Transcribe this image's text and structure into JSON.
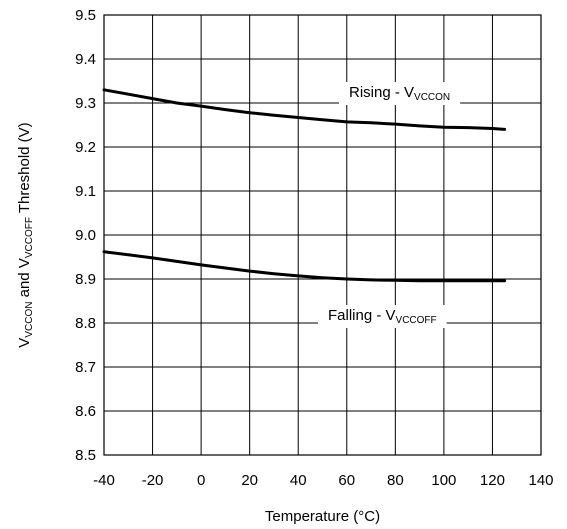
{
  "chart_data": {
    "type": "line",
    "xlabel": "Temperature (°C)",
    "ylabel": {
      "v1": "V",
      "sub1": "VCCON",
      "mid": " and V",
      "sub2": "VCCOFF",
      "end": " Threshold (V)"
    },
    "xlim": [
      -40,
      140
    ],
    "ylim": [
      8.5,
      9.5
    ],
    "x_ticks": [
      "-40",
      "-20",
      "0",
      "20",
      "40",
      "60",
      "80",
      "100",
      "120",
      "140"
    ],
    "y_ticks": [
      "8.5",
      "8.6",
      "8.7",
      "8.8",
      "8.9",
      "9.0",
      "9.1",
      "9.2",
      "9.3",
      "9.4",
      "9.5"
    ],
    "grid": true,
    "series": [
      {
        "name": "Rising - VVCCON",
        "x": [
          -40,
          -30,
          -20,
          -10,
          0,
          10,
          20,
          30,
          40,
          50,
          60,
          70,
          80,
          90,
          100,
          110,
          120,
          125
        ],
        "y": [
          9.33,
          9.32,
          9.31,
          9.3,
          9.293,
          9.285,
          9.278,
          9.272,
          9.267,
          9.262,
          9.257,
          9.255,
          9.252,
          9.248,
          9.245,
          9.244,
          9.242,
          9.24
        ]
      },
      {
        "name": "Falling - VVCCOFF",
        "x": [
          -40,
          -30,
          -20,
          -10,
          0,
          10,
          20,
          30,
          40,
          50,
          60,
          70,
          80,
          90,
          100,
          110,
          120,
          125
        ],
        "y": [
          8.962,
          8.955,
          8.948,
          8.94,
          8.932,
          8.925,
          8.918,
          8.912,
          8.907,
          8.903,
          8.9,
          8.898,
          8.897,
          8.896,
          8.896,
          8.896,
          8.896,
          8.896
        ]
      }
    ],
    "annotations": [
      {
        "main": "Rising - V",
        "sub": "VCCON"
      },
      {
        "main": "Falling - V",
        "sub": "VCCOFF"
      }
    ]
  }
}
